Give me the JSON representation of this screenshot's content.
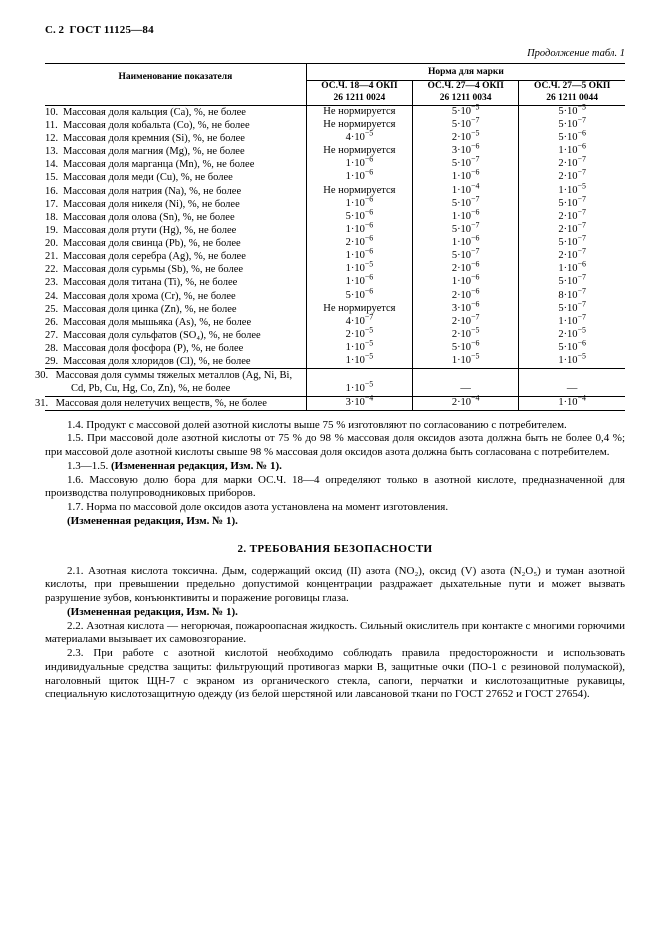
{
  "header": {
    "page": "С. 2",
    "gost": "ГОСТ 11125—84"
  },
  "continuation": "Продолжение табл. 1",
  "table": {
    "col_name": "Наименование показателя",
    "norm_header": "Норма для марки",
    "grades": [
      {
        "line1": "ОС.Ч. 18—4 ОКП",
        "line2": "26 1211 0024"
      },
      {
        "line1": "ОС.Ч. 27—4 ОКП",
        "line2": "26 1211 0034"
      },
      {
        "line1": "ОС.Ч. 27—5 ОКП",
        "line2": "26 1211 0044"
      }
    ],
    "rows": [
      {
        "n": "10.",
        "name": "Массовая доля кальция (Ca), %, не более",
        "v": [
          {
            "t": "text",
            "val": "Не нормируется"
          },
          {
            "t": "sci",
            "c": "5",
            "e": "−5"
          },
          {
            "t": "sci",
            "c": "5",
            "e": "−5"
          }
        ]
      },
      {
        "n": "11.",
        "name": "Массовая доля кобальта (Co), %, не более",
        "v": [
          {
            "t": "text",
            "val": "Не нормируется"
          },
          {
            "t": "sci",
            "c": "5",
            "e": "−7"
          },
          {
            "t": "sci",
            "c": "5",
            "e": "−7"
          }
        ]
      },
      {
        "n": "12.",
        "name": "Массовая доля кремния (Si), %, не более",
        "v": [
          {
            "t": "sci",
            "c": "4",
            "e": "−5"
          },
          {
            "t": "sci",
            "c": "2",
            "e": "−5"
          },
          {
            "t": "sci",
            "c": "5",
            "e": "−6"
          }
        ]
      },
      {
        "n": "13.",
        "name": "Массовая доля магния (Mg), %, не более",
        "v": [
          {
            "t": "text",
            "val": "Не нормируется"
          },
          {
            "t": "sci",
            "c": "3",
            "e": "−6"
          },
          {
            "t": "sci",
            "c": "1",
            "e": "−6"
          }
        ]
      },
      {
        "n": "14.",
        "name": "Массовая доля марганца (Mn), %, не более",
        "v": [
          {
            "t": "sci",
            "c": "1",
            "e": "−6"
          },
          {
            "t": "sci",
            "c": "5",
            "e": "−7"
          },
          {
            "t": "sci",
            "c": "2",
            "e": "−7"
          }
        ]
      },
      {
        "n": "15.",
        "name": "Массовая доля меди (Cu), %, не более",
        "v": [
          {
            "t": "sci",
            "c": "1",
            "e": "−6"
          },
          {
            "t": "sci",
            "c": "1",
            "e": "−6"
          },
          {
            "t": "sci",
            "c": "2",
            "e": "−7"
          }
        ]
      },
      {
        "n": "16.",
        "name": "Массовая доля натрия (Na), %, не более",
        "v": [
          {
            "t": "text",
            "val": "Не нормируется"
          },
          {
            "t": "sci",
            "c": "1",
            "e": "−4"
          },
          {
            "t": "sci",
            "c": "1",
            "e": "−5"
          }
        ]
      },
      {
        "n": "17.",
        "name": "Массовая доля никеля (Ni), %, не более",
        "v": [
          {
            "t": "sci",
            "c": "1",
            "e": "−6"
          },
          {
            "t": "sci",
            "c": "5",
            "e": "−7"
          },
          {
            "t": "sci",
            "c": "5",
            "e": "−7"
          }
        ]
      },
      {
        "n": "18.",
        "name": "Массовая доля олова (Sn), %, не более",
        "v": [
          {
            "t": "sci",
            "c": "5",
            "e": "−6"
          },
          {
            "t": "sci",
            "c": "1",
            "e": "−6"
          },
          {
            "t": "sci",
            "c": "2",
            "e": "−7"
          }
        ]
      },
      {
        "n": "19.",
        "name": "Массовая доля ртути (Hg), %, не более",
        "v": [
          {
            "t": "sci",
            "c": "1",
            "e": "−6"
          },
          {
            "t": "sci",
            "c": "5",
            "e": "−7"
          },
          {
            "t": "sci",
            "c": "2",
            "e": "−7"
          }
        ]
      },
      {
        "n": "20.",
        "name": "Массовая доля свинца (Pb), %, не более",
        "v": [
          {
            "t": "sci",
            "c": "2",
            "e": "−6"
          },
          {
            "t": "sci",
            "c": "1",
            "e": "−6"
          },
          {
            "t": "sci",
            "c": "5",
            "e": "−7"
          }
        ]
      },
      {
        "n": "21.",
        "name": "Массовая доля серебра (Ag), %, не более",
        "v": [
          {
            "t": "sci",
            "c": "1",
            "e": "−6"
          },
          {
            "t": "sci",
            "c": "5",
            "e": "−7"
          },
          {
            "t": "sci",
            "c": "2",
            "e": "−7"
          }
        ]
      },
      {
        "n": "22.",
        "name": "Массовая доля сурьмы (Sb), %, не более",
        "v": [
          {
            "t": "sci",
            "c": "1",
            "e": "−5"
          },
          {
            "t": "sci",
            "c": "2",
            "e": "−6"
          },
          {
            "t": "sci",
            "c": "1",
            "e": "−6"
          }
        ]
      },
      {
        "n": "23.",
        "name": "Массовая доля титана (Ti), %, не более",
        "v": [
          {
            "t": "sci",
            "c": "1",
            "e": "−6"
          },
          {
            "t": "sci",
            "c": "1",
            "e": "−6"
          },
          {
            "t": "sci",
            "c": "5",
            "e": "−7"
          }
        ]
      },
      {
        "n": "24.",
        "name": "Массовая доля хрома (Cr), %, не более",
        "v": [
          {
            "t": "sci",
            "c": "5",
            "e": "−6"
          },
          {
            "t": "sci",
            "c": "2",
            "e": "−6"
          },
          {
            "t": "sci",
            "c": "8",
            "e": "−7"
          }
        ]
      },
      {
        "n": "25.",
        "name": "Массовая доля цинка (Zn), %, не более",
        "v": [
          {
            "t": "text",
            "val": "Не нормируется"
          },
          {
            "t": "sci",
            "c": "3",
            "e": "−6"
          },
          {
            "t": "sci",
            "c": "5",
            "e": "−7"
          }
        ]
      },
      {
        "n": "26.",
        "name": "Массовая доля мышьяка (As), %, не более",
        "v": [
          {
            "t": "sci",
            "c": "4",
            "e": "−7"
          },
          {
            "t": "sci",
            "c": "2",
            "e": "−7"
          },
          {
            "t": "sci",
            "c": "1",
            "e": "−7"
          }
        ]
      },
      {
        "n": "27.",
        "name": "Массовая доля сульфатов (SO₄), %, не более",
        "v": [
          {
            "t": "sci",
            "c": "2",
            "e": "−5"
          },
          {
            "t": "sci",
            "c": "2",
            "e": "−5"
          },
          {
            "t": "sci",
            "c": "2",
            "e": "−5"
          }
        ]
      },
      {
        "n": "28.",
        "name": "Массовая доля фосфора (P), %, не более",
        "v": [
          {
            "t": "sci",
            "c": "1",
            "e": "−5"
          },
          {
            "t": "sci",
            "c": "5",
            "e": "−6"
          },
          {
            "t": "sci",
            "c": "5",
            "e": "−6"
          }
        ]
      },
      {
        "n": "29.",
        "name": "Массовая доля хлоридов (Cl), %, не более",
        "v": [
          {
            "t": "sci",
            "c": "1",
            "e": "−5"
          },
          {
            "t": "sci",
            "c": "1",
            "e": "−5"
          },
          {
            "t": "sci",
            "c": "1",
            "e": "−5"
          }
        ],
        "bottom_border": true
      },
      {
        "n": "30.",
        "name": "Массовая доля суммы тяжелых металлов (Ag, Ni, Bi, Cd, Pb, Cu, Hg, Co, Zn), %, не более",
        "hang": true,
        "v": [
          {
            "t": "sci",
            "c": "1",
            "e": "−5"
          },
          {
            "t": "text",
            "val": "—"
          },
          {
            "t": "text",
            "val": "—"
          }
        ],
        "bottom_border": true
      },
      {
        "n": "31.",
        "name": "Массовая доля нелетучих веществ, %, не более",
        "hang": true,
        "v": [
          {
            "t": "sci",
            "c": "3",
            "e": "−4"
          },
          {
            "t": "sci",
            "c": "2",
            "e": "−4"
          },
          {
            "t": "sci",
            "c": "1",
            "e": "−4"
          }
        ]
      }
    ]
  },
  "paras1": [
    "1.4. Продукт с массовой долей азотной кислоты выше 75 % изготовляют по согласованию с потребителем.",
    "1.5. При массовой доле азотной кислоты от 75 % до 98 % массовая доля оксидов азота должна быть не более 0,4 %; при массовой доле азотной кислоты свыше 98 % массовая доля оксидов азота должна быть согласована с потребителем.",
    "1.3—1.5. <b>(Измененная редакция, Изм. № 1).</b>",
    "1.6. Массовую долю бора для марки ОС.Ч. 18—4 определяют только в азотной кислоте, предназначенной для производства полупроводниковых приборов.",
    "1.7. Норма по массовой доле оксидов азота установлена на момент изготовления.",
    "<b>(Измененная редакция, Изм. № 1).</b>"
  ],
  "section2": {
    "title": "2.  ТРЕБОВАНИЯ БЕЗОПАСНОСТИ",
    "paras": [
      "2.1. Азотная кислота токсична. Дым, содержащий оксид (II) азота (NO₂), оксид (V) азота (N₂O₅) и туман азотной кислоты, при превышении предельно допустимой концентрации раздражает дыхательные пути и может вызвать разрушение зубов, конъюнктивиты и поражение роговицы глаза.",
      "<b>(Измененная редакция, Изм. № 1).</b>",
      "2.2. Азотная кислота — негорючая, пожароопасная жидкость. Сильный окислитель при контакте с многими горючими материалами вызывает их самовозгорание.",
      "2.3. При работе с азотной кислотой необходимо соблюдать правила предосторожности и использовать индивидуальные средства защиты: фильтрующий противогаз марки В, защитные очки (ПО-1 с резиновой полумаской), наголовный щиток ЩН-7 с экраном из органического стекла, сапоги, перчатки и кислотозащитные рукавицы, специальную кислотозащитную одежду (из белой шерстяной или лавсановой ткани по ГОСТ 27652 и ГОСТ 27654)."
    ]
  },
  "style": {
    "col_widths": [
      "45%",
      "18.3%",
      "18.3%",
      "18.3%"
    ]
  }
}
